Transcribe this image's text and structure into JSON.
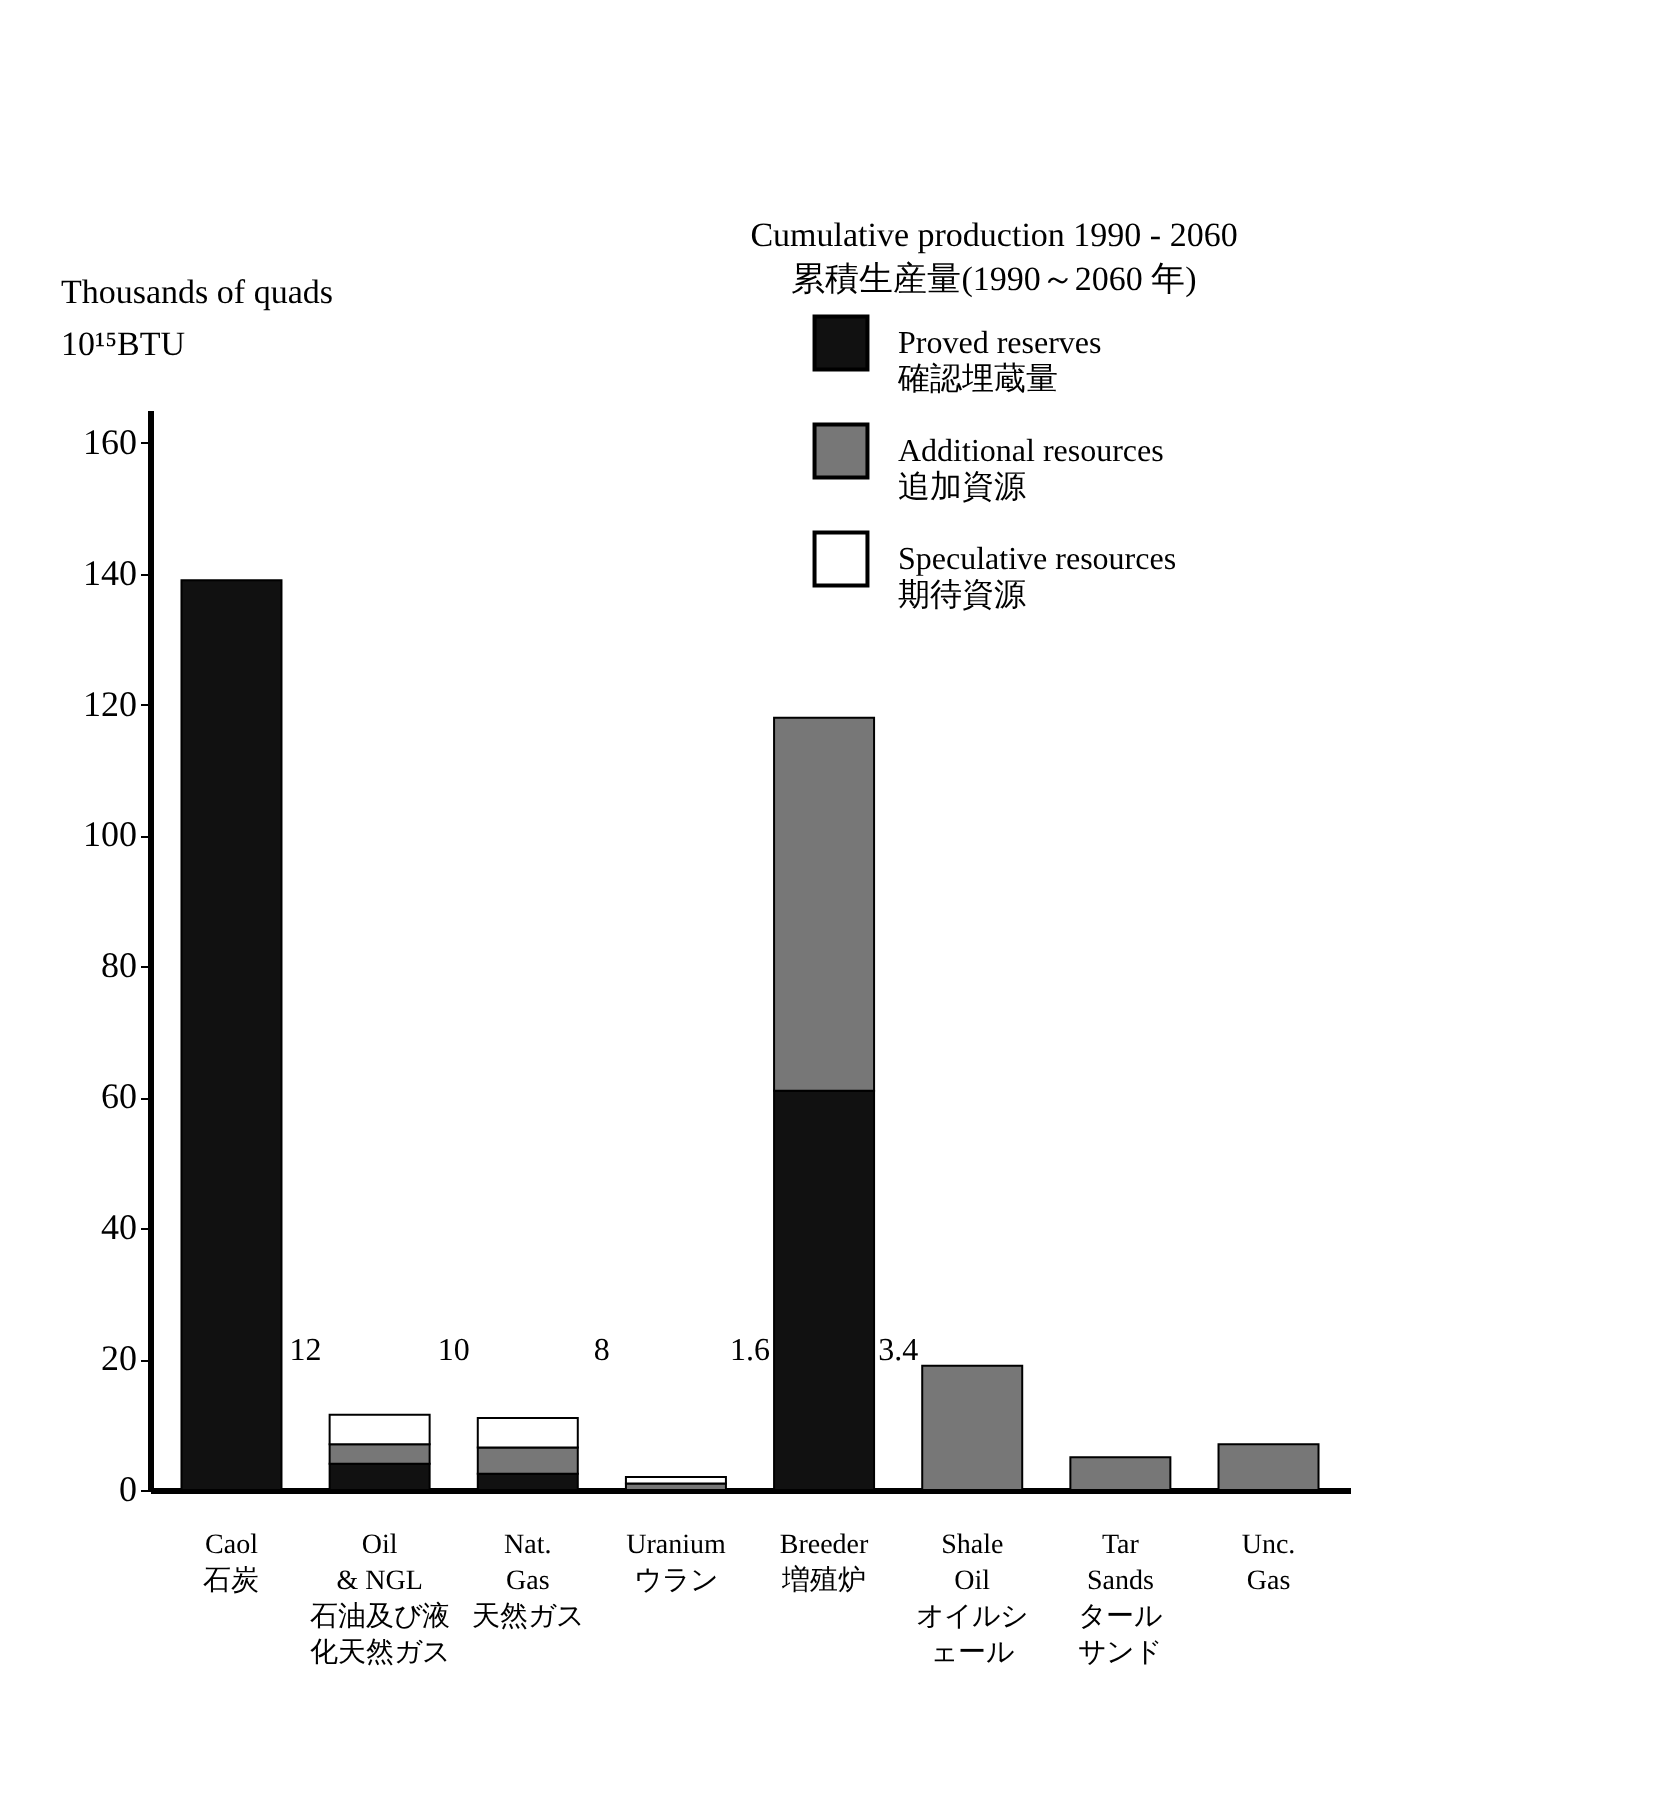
{
  "chart_data": {
    "type": "bar",
    "stacked": true,
    "ylabel": "Thousands of quads",
    "subtitle": "10¹⁵BTU",
    "legend_title": "Cumulative production 1990 - 2060\n累積生産量(1990～2060 年)",
    "categories": [
      "Caol\n石炭",
      "Oil\n& NGL\n石油及び液化天然ガス",
      "Nat.\nGas\n天然ガス",
      "Uranium\nウラン",
      "Breeder\n増殖炉",
      "Shale\nOil\nオイルシェール",
      "Tar\nSands\nタールサンド",
      "Unc.\nGas"
    ],
    "series": [
      {
        "name": "Proved reserves\n確認埋蔵量",
        "color": "#111111",
        "values": [
          139,
          4,
          2.5,
          0,
          61,
          0,
          0,
          0
        ]
      },
      {
        "name": "Additional resources\n追加資源",
        "color": "#777777",
        "values": [
          0,
          3,
          4,
          1,
          57,
          19,
          5,
          7
        ]
      },
      {
        "name": "Speculative resources\n期待資源",
        "color": "#ffffff",
        "values": [
          0,
          4.5,
          4.5,
          1,
          0,
          0,
          0,
          0
        ]
      }
    ],
    "ylim": [
      0,
      165
    ],
    "yticks": [
      0,
      20,
      40,
      60,
      80,
      100,
      120,
      140,
      160
    ],
    "grid": false,
    "legend": "top right",
    "annotations": [
      "12",
      "10",
      "8",
      "1.6",
      "3.4"
    ]
  }
}
